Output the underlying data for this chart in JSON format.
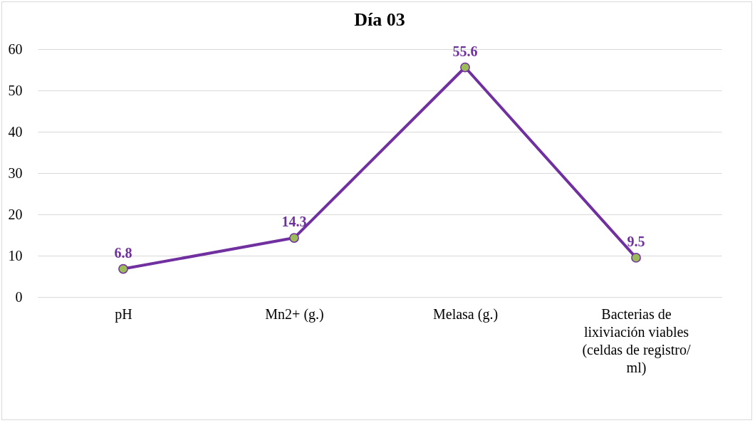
{
  "chart_data": {
    "type": "line",
    "title": "Día 03",
    "categories": [
      "pH",
      "Mn2+ (g.)",
      "Melasa (g.)",
      "Bacterias de lixiviación viables (celdas de registro/ ml)"
    ],
    "series": [
      {
        "color": "#7030a0",
        "values": [
          6.8,
          14.3,
          55.6,
          9.5
        ]
      }
    ],
    "ylim": [
      0,
      60
    ],
    "yticks": [
      0,
      10,
      20,
      30,
      40,
      50,
      60
    ],
    "grid": "y",
    "marker": "circle",
    "data_labels": true
  }
}
